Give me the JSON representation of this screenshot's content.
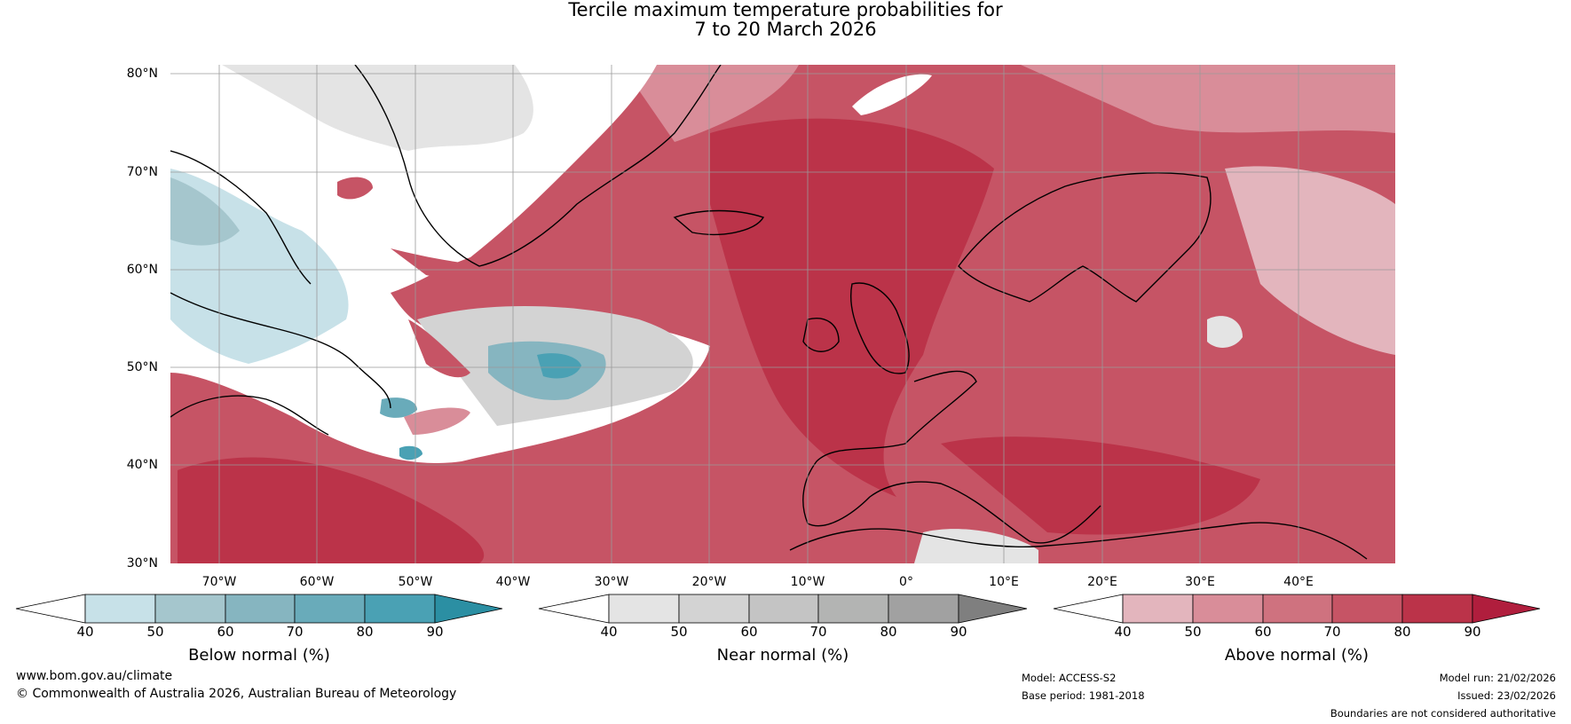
{
  "title": {
    "line1": "Tercile maximum temperature probabilities for",
    "line2": "7 to 20 March 2026"
  },
  "latitude_labels": [
    "80°N",
    "70°N",
    "60°N",
    "50°N",
    "40°N",
    "30°N"
  ],
  "longitude_labels": [
    "70°W",
    "60°W",
    "50°W",
    "40°W",
    "30°W",
    "20°W",
    "10°W",
    "0°",
    "10°E",
    "20°E",
    "30°E",
    "40°E"
  ],
  "colorbars": {
    "below": {
      "title": "Below normal (%)",
      "ticks": [
        "40",
        "50",
        "60",
        "70",
        "80",
        "90"
      ],
      "colors": [
        "#ffffff",
        "#c7e1e8",
        "#a5c6cd",
        "#86b5c0",
        "#69abba",
        "#4aa1b4",
        "#2b8fa3"
      ]
    },
    "near": {
      "title": "Near normal (%)",
      "ticks": [
        "40",
        "50",
        "60",
        "70",
        "80",
        "90"
      ],
      "colors": [
        "#ffffff",
        "#e4e4e4",
        "#d3d3d3",
        "#c4c4c4",
        "#b3b4b3",
        "#a1a1a1",
        "#7f7f7f"
      ]
    },
    "above": {
      "title": "Above normal (%)",
      "ticks": [
        "40",
        "50",
        "60",
        "70",
        "80",
        "90"
      ],
      "colors": [
        "#ffffff",
        "#e3b5bd",
        "#d98d99",
        "#cf727f",
        "#c65465",
        "#bb3349",
        "#b01e3d"
      ]
    }
  },
  "map_colors": {
    "ocean_white": "#ffffff",
    "red_base": "#c65465",
    "red_light": "#e3b5bd",
    "red_mid": "#d98d99",
    "red_dark": "#bb3349",
    "grey_light": "#e4e4e4",
    "grey_mid": "#d3d3d3",
    "blue_light": "#c7e1e8",
    "blue_mid": "#86b5c0",
    "blue_dark": "#4aa1b4"
  },
  "footer": {
    "website": "www.bom.gov.au/climate",
    "copyright": "© Commonwealth of Australia 2026, Australian Bureau of Meteorology",
    "model": "Model: ACCESS-S2",
    "base_period": "Base period: 1981-2018",
    "model_run": "Model run: 21/02/2026",
    "issued": "Issued: 23/02/2026",
    "disclaimer": "Boundaries are not considered authoritative"
  }
}
